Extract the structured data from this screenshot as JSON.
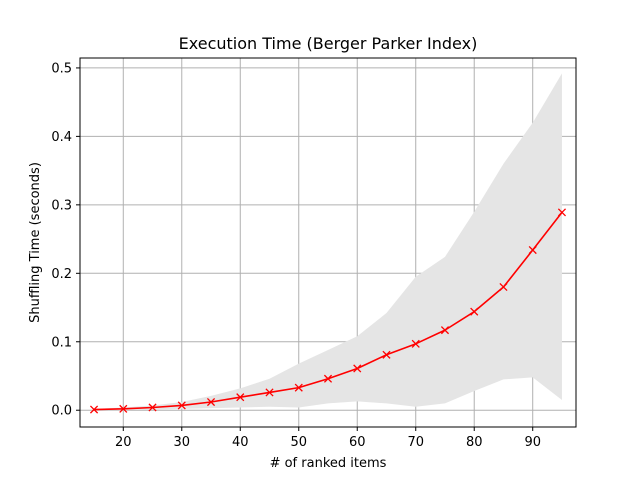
{
  "chart_data": {
    "type": "line",
    "title": "Execution Time (Berger Parker Index)",
    "xlabel": "# of ranked items",
    "ylabel": "Shuffling Time (seconds)",
    "xlim": [
      12.6,
      97.4
    ],
    "ylim": [
      -0.0245,
      0.5145
    ],
    "xticks": [
      20,
      30,
      40,
      50,
      60,
      70,
      80,
      90
    ],
    "yticks": [
      0.0,
      0.1,
      0.2,
      0.3,
      0.4,
      0.5
    ],
    "ytick_labels": [
      "0.0",
      "0.1",
      "0.2",
      "0.3",
      "0.4",
      "0.5"
    ],
    "grid": true,
    "series": [
      {
        "marker": "x",
        "color": "#ff0000",
        "x": [
          15,
          20,
          25,
          30,
          35,
          40,
          45,
          50,
          55,
          60,
          65,
          70,
          75,
          80,
          85,
          90,
          95
        ],
        "y": [
          0.001,
          0.002,
          0.004,
          0.007,
          0.012,
          0.019,
          0.026,
          0.033,
          0.046,
          0.061,
          0.081,
          0.097,
          0.117,
          0.144,
          0.18,
          0.234,
          0.289
        ]
      }
    ],
    "band": {
      "color": "#e5e5e5",
      "x": [
        15,
        20,
        25,
        30,
        35,
        40,
        45,
        50,
        55,
        60,
        65,
        70,
        75,
        80,
        85,
        90,
        95
      ],
      "lower": [
        0.0,
        0.0,
        0.001,
        0.002,
        0.003,
        0.004,
        0.005,
        0.004,
        0.01,
        0.013,
        0.01,
        0.005,
        0.01,
        0.028,
        0.045,
        0.048,
        0.015
      ],
      "upper": [
        0.002,
        0.004,
        0.007,
        0.012,
        0.021,
        0.032,
        0.046,
        0.068,
        0.088,
        0.108,
        0.142,
        0.195,
        0.224,
        0.29,
        0.36,
        0.42,
        0.492
      ]
    }
  }
}
